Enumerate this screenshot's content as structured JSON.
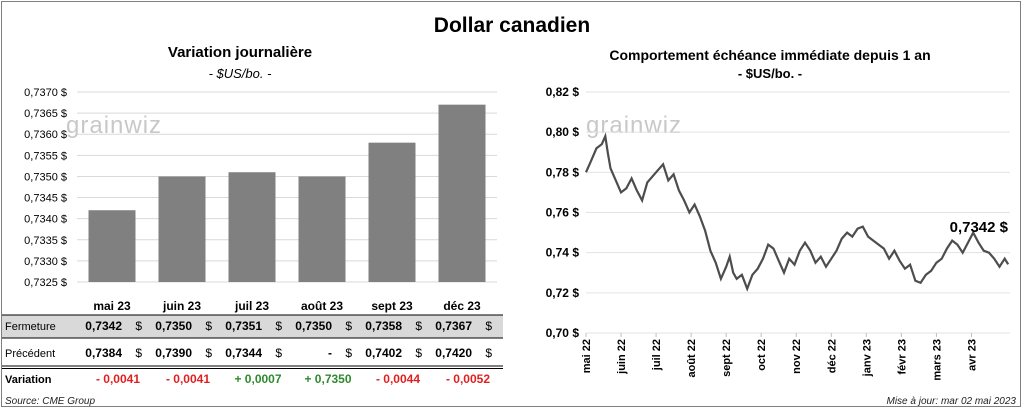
{
  "title": "Dollar canadien",
  "left": {
    "title": "Variation  journalière",
    "unit": "- $US/bo. -",
    "watermark": "grainwiz"
  },
  "right": {
    "title": "Comportement échéance immédiate depuis 1 an",
    "unit": "- $US/bo. -",
    "watermark": "grainwiz",
    "last_label": "0,7342 $"
  },
  "table": {
    "rows": [
      {
        "label": "Fermeture",
        "values": [
          "0,7342",
          "0,7350",
          "0,7351",
          "0,7350",
          "0,7358",
          "0,7367"
        ]
      },
      {
        "label": "Précédent",
        "values": [
          "0,7384",
          "0,7390",
          "0,7344",
          "-",
          "0,7402",
          "0,7420"
        ]
      },
      {
        "label": "Variation",
        "values": [
          "- 0,0041",
          "- 0,0041",
          "+ 0,0007",
          "+ 0,7350",
          "- 0,0044",
          "- 0,0052"
        ]
      }
    ],
    "currency": "$"
  },
  "source": "Source: CME Group",
  "updated": "Mise à jour: mar 02 mai 2023",
  "colors": {
    "bar": "#808080",
    "line": "#4d4d4d",
    "negative": "#e02020",
    "positive": "#2e8b2e",
    "table_shade": "#d9d9d9"
  },
  "chart_data": [
    {
      "type": "bar",
      "categories": [
        "mai 23",
        "juin 23",
        "juil 23",
        "août 23",
        "sept 23",
        "déc 23"
      ],
      "values": [
        0.7342,
        0.735,
        0.7351,
        0.735,
        0.7358,
        0.7367
      ],
      "ylim": [
        0.7325,
        0.737
      ],
      "yticks": [
        "0,7325 $",
        "0,7330 $",
        "0,7335 $",
        "0,7340 $",
        "0,7345 $",
        "0,7350 $",
        "0,7355 $",
        "0,7360 $",
        "0,7365 $",
        "0,7370 $"
      ],
      "grid": true
    },
    {
      "type": "line",
      "ylim": [
        0.7,
        0.82
      ],
      "yticks": [
        "0,70 $",
        "0,72 $",
        "0,74 $",
        "0,76 $",
        "0,78 $",
        "0,80 $",
        "0,82 $"
      ],
      "xticks": [
        "mai 22",
        "juin 22",
        "juil 22",
        "août 22",
        "sept 22",
        "oct 22",
        "nov 22",
        "déc 22",
        "janv 23",
        "févr 23",
        "mars 23",
        "avr 23"
      ],
      "xlim": [
        0,
        12.1
      ],
      "x": [
        0,
        0.15,
        0.3,
        0.45,
        0.55,
        0.62,
        0.7,
        0.85,
        1.0,
        1.15,
        1.3,
        1.45,
        1.6,
        1.75,
        1.9,
        2.05,
        2.2,
        2.35,
        2.5,
        2.65,
        2.8,
        2.95,
        3.1,
        3.25,
        3.4,
        3.55,
        3.7,
        3.85,
        4.0,
        4.1,
        4.2,
        4.3,
        4.45,
        4.6,
        4.75,
        4.9,
        5.05,
        5.2,
        5.35,
        5.5,
        5.65,
        5.8,
        5.95,
        6.1,
        6.25,
        6.4,
        6.55,
        6.7,
        6.85,
        7.0,
        7.15,
        7.3,
        7.45,
        7.6,
        7.75,
        7.9,
        8.05,
        8.2,
        8.35,
        8.5,
        8.65,
        8.8,
        8.95,
        9.1,
        9.25,
        9.4,
        9.55,
        9.7,
        9.85,
        10.0,
        10.15,
        10.3,
        10.45,
        10.6,
        10.75,
        10.9,
        11.05,
        11.2,
        11.35,
        11.5,
        11.65,
        11.8,
        11.95,
        12.05
      ],
      "y": [
        0.78,
        0.786,
        0.792,
        0.794,
        0.798,
        0.79,
        0.782,
        0.776,
        0.77,
        0.772,
        0.777,
        0.771,
        0.766,
        0.775,
        0.778,
        0.781,
        0.784,
        0.776,
        0.779,
        0.771,
        0.766,
        0.76,
        0.764,
        0.758,
        0.751,
        0.741,
        0.735,
        0.727,
        0.733,
        0.738,
        0.73,
        0.727,
        0.729,
        0.722,
        0.729,
        0.732,
        0.737,
        0.744,
        0.742,
        0.736,
        0.73,
        0.737,
        0.734,
        0.741,
        0.745,
        0.741,
        0.735,
        0.738,
        0.733,
        0.737,
        0.741,
        0.747,
        0.75,
        0.748,
        0.752,
        0.753,
        0.748,
        0.746,
        0.744,
        0.742,
        0.737,
        0.741,
        0.736,
        0.732,
        0.734,
        0.726,
        0.725,
        0.729,
        0.731,
        0.735,
        0.737,
        0.742,
        0.746,
        0.744,
        0.74,
        0.745,
        0.75,
        0.745,
        0.741,
        0.74,
        0.737,
        0.733,
        0.737,
        0.7342
      ]
    }
  ]
}
